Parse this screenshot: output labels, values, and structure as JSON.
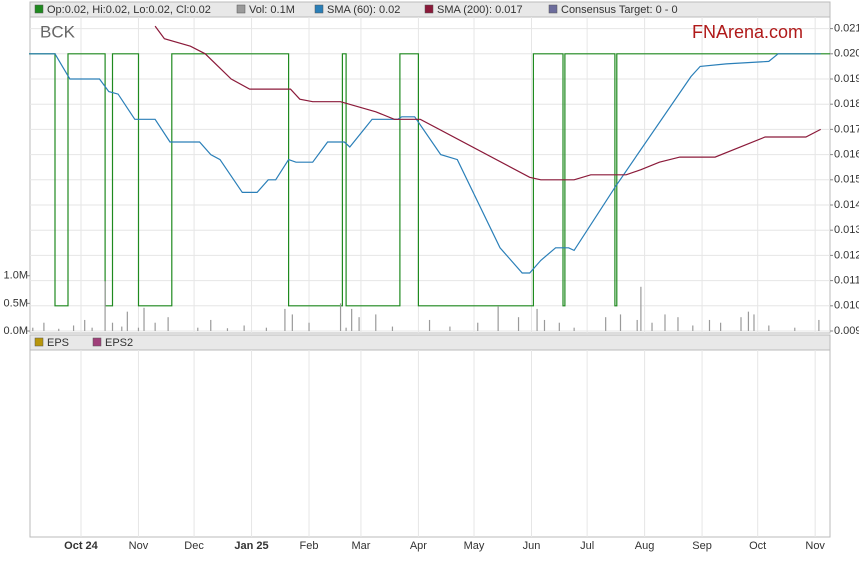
{
  "chart_data": {
    "type": "line",
    "ticker": "BCK",
    "brand": "FNArena.com",
    "xlim": [
      -27.5,
      404
    ],
    "xticks": [
      {
        "value": 0,
        "label": "Oct 24"
      },
      {
        "value": 31,
        "label": "Nov"
      },
      {
        "value": 61,
        "label": "Dec"
      },
      {
        "value": 92,
        "label": "Jan 25"
      },
      {
        "value": 123,
        "label": "Feb"
      },
      {
        "value": 151,
        "label": "Mar"
      },
      {
        "value": 182,
        "label": "Apr"
      },
      {
        "value": 212,
        "label": "May"
      },
      {
        "value": 243,
        "label": "Jun"
      },
      {
        "value": 273,
        "label": "Jul"
      },
      {
        "value": 304,
        "label": "Aug"
      },
      {
        "value": 335,
        "label": "Sep"
      },
      {
        "value": 365,
        "label": "Oct"
      },
      {
        "value": 396,
        "label": "Nov"
      }
    ],
    "ylim": [
      0.009,
      0.0215
    ],
    "yticks": [
      0.009,
      {
        "value": 0.01,
        "label": "0.010"
      },
      0.011,
      0.012,
      0.013,
      0.014,
      0.015,
      0.016,
      0.017,
      0.018,
      0.019,
      {
        "value": 0.02,
        "label": "0.020"
      },
      0.021
    ],
    "y2lim": [
      0,
      5700000
    ],
    "y2ticks": [
      {
        "value": 0,
        "label": "0.0M"
      },
      {
        "value": 500000,
        "label": "0.5M"
      },
      {
        "value": 1000000,
        "label": "1.0M"
      }
    ],
    "grid": true,
    "legend": "top-left",
    "series": [
      {
        "name": "Op:0.02, Hi:0.02, Lo:0.02, Cl:0.02",
        "color": "#1f8a1f",
        "type": "line",
        "x": [
          -28,
          -14,
          -14,
          -7,
          -7,
          13,
          13,
          17,
          17,
          31,
          31,
          49,
          49,
          112,
          112,
          141,
          141,
          143,
          143,
          172,
          172,
          182,
          182,
          244,
          244,
          260,
          260,
          261,
          261,
          288,
          288,
          289,
          289,
          404
        ],
        "values": [
          0.02,
          0.02,
          0.01,
          0.01,
          0.02,
          0.02,
          0.01,
          0.01,
          0.02,
          0.02,
          0.01,
          0.01,
          0.02,
          0.02,
          0.01,
          0.01,
          0.02,
          0.02,
          0.01,
          0.01,
          0.02,
          0.02,
          0.01,
          0.01,
          0.02,
          0.02,
          0.01,
          0.01,
          0.02,
          0.02,
          0.01,
          0.01,
          0.02,
          0.02
        ]
      },
      {
        "name": "Vol: 0.1M",
        "color": "#9a9a9a",
        "type": "bar",
        "axis": "y2",
        "x": [
          -26,
          -20,
          -12,
          -4,
          2,
          6,
          13,
          17,
          22,
          25,
          31,
          34,
          40,
          47,
          63,
          70,
          79,
          88,
          100,
          110,
          114,
          123,
          140,
          143,
          146,
          150,
          159,
          168,
          188,
          199,
          214,
          225,
          236,
          246,
          250,
          258,
          266,
          283,
          291,
          300,
          302,
          308,
          315,
          322,
          330,
          339,
          345,
          356,
          360,
          363,
          371,
          385,
          398
        ],
        "values": [
          60000,
          150000,
          40000,
          100000,
          200000,
          60000,
          900000,
          150000,
          80000,
          350000,
          60000,
          420000,
          150000,
          250000,
          60000,
          200000,
          50000,
          100000,
          60000,
          400000,
          300000,
          150000,
          500000,
          60000,
          400000,
          250000,
          300000,
          80000,
          200000,
          80000,
          150000,
          450000,
          250000,
          400000,
          200000,
          150000,
          60000,
          250000,
          300000,
          200000,
          800000,
          150000,
          300000,
          250000,
          100000,
          200000,
          150000,
          250000,
          350000,
          300000,
          100000,
          60000,
          200000
        ]
      },
      {
        "name": "SMA (60): 0.02",
        "color": "#2a7fb8",
        "type": "line",
        "x": [
          -28,
          -14,
          -10,
          -6,
          10,
          15,
          20,
          29,
          40,
          48,
          64,
          70,
          75,
          87,
          95,
          101,
          105,
          112,
          116,
          125,
          133,
          142,
          145,
          157,
          171,
          173,
          180,
          194,
          203,
          226,
          238,
          242,
          248,
          256,
          263,
          266,
          288,
          329,
          334,
          348,
          371,
          376,
          399
        ],
        "values": [
          0.02,
          0.02,
          0.0195,
          0.019,
          0.019,
          0.0185,
          0.0184,
          0.0174,
          0.0174,
          0.0165,
          0.0165,
          0.016,
          0.0158,
          0.0145,
          0.0145,
          0.015,
          0.015,
          0.0158,
          0.0157,
          0.0157,
          0.0165,
          0.0165,
          0.0163,
          0.0174,
          0.0174,
          0.0175,
          0.0175,
          0.016,
          0.0158,
          0.0123,
          0.0113,
          0.0113,
          0.0118,
          0.0123,
          0.0123,
          0.0122,
          0.0147,
          0.0191,
          0.0195,
          0.0196,
          0.0197,
          0.02,
          0.02
        ]
      },
      {
        "name": "SMA (200): 0.017",
        "color": "#8b1a3a",
        "type": "line",
        "x": [
          40,
          45,
          59,
          67,
          81,
          91,
          113,
          118,
          125,
          140,
          159,
          169,
          183,
          242,
          248,
          259,
          266,
          275,
          287,
          294,
          302,
          312,
          323,
          342,
          369,
          391,
          399
        ],
        "values": [
          0.0211,
          0.0206,
          0.0203,
          0.02,
          0.019,
          0.0186,
          0.0186,
          0.0182,
          0.0181,
          0.0181,
          0.0177,
          0.0174,
          0.0174,
          0.0151,
          0.015,
          0.015,
          0.015,
          0.0152,
          0.0152,
          0.0152,
          0.0154,
          0.0157,
          0.0159,
          0.0159,
          0.0167,
          0.0167,
          0.017
        ]
      },
      {
        "name": "Consensus Target: 0 - 0",
        "color": "#6c6c9c",
        "type": "line",
        "x": [],
        "values": []
      }
    ],
    "lower_panel": {
      "series": [
        {
          "name": "EPS",
          "color": "#b8960b"
        },
        {
          "name": "EPS2",
          "color": "#a0407a"
        }
      ]
    }
  }
}
